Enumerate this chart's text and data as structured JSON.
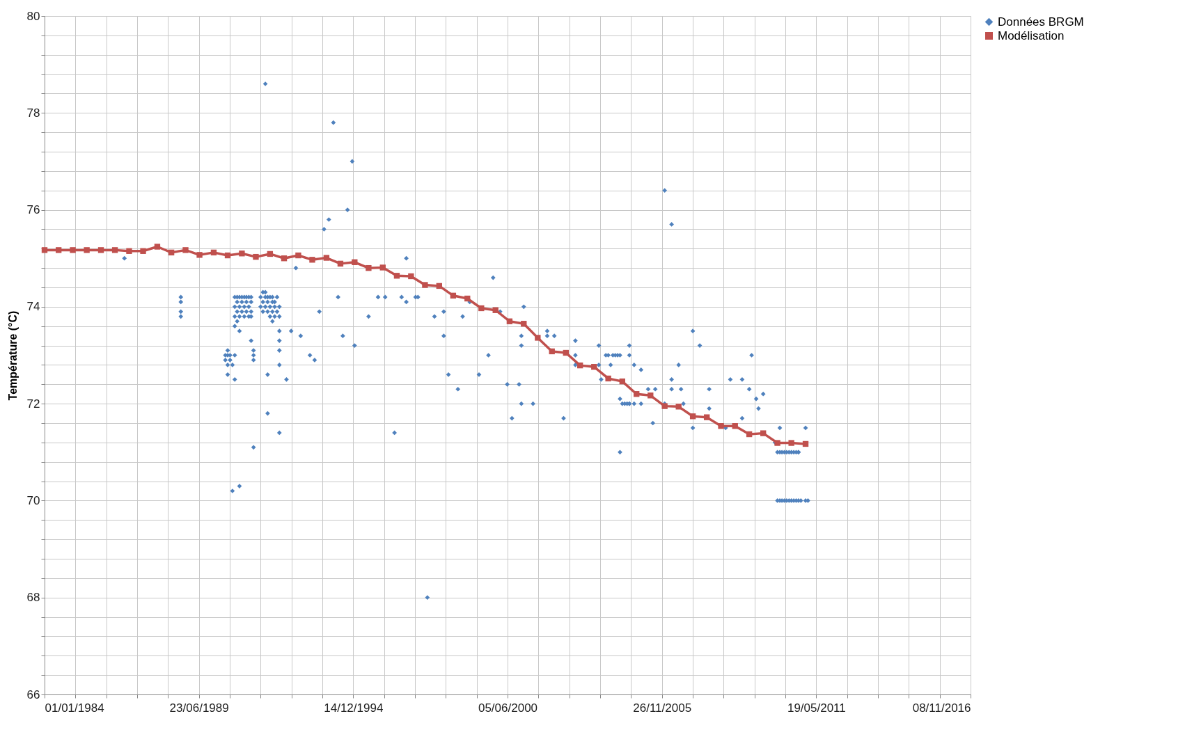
{
  "chart_data": {
    "type": "scatter",
    "ylabel": "Température (°C)",
    "xlim": [
      "1984-01-01",
      "2016-11-08"
    ],
    "ylim": [
      66,
      80
    ],
    "grid": true,
    "legend": "right",
    "xticks": [
      {
        "value": "1984-01-01",
        "label": "01/01/1984"
      },
      {
        "value": "1985-02-04",
        "label": null
      },
      {
        "value": "1986-03-10",
        "label": null
      },
      {
        "value": "1987-04-15",
        "label": null
      },
      {
        "value": "1988-05-19",
        "label": null
      },
      {
        "value": "1989-06-23",
        "label": "23/06/1989"
      },
      {
        "value": "1990-07-28",
        "label": null
      },
      {
        "value": "1991-09-01",
        "label": null
      },
      {
        "value": "1992-10-05",
        "label": null
      },
      {
        "value": "1993-11-09",
        "label": null
      },
      {
        "value": "1994-12-14",
        "label": "14/12/1994"
      },
      {
        "value": "1996-01-18",
        "label": null
      },
      {
        "value": "1997-02-21",
        "label": null
      },
      {
        "value": "1998-03-28",
        "label": null
      },
      {
        "value": "1999-05-02",
        "label": null
      },
      {
        "value": "2000-06-05",
        "label": "05/06/2000"
      },
      {
        "value": "2001-07-10",
        "label": null
      },
      {
        "value": "2002-08-14",
        "label": null
      },
      {
        "value": "2003-09-18",
        "label": null
      },
      {
        "value": "2004-10-22",
        "label": null
      },
      {
        "value": "2005-11-26",
        "label": "26/11/2005"
      },
      {
        "value": "2006-12-31",
        "label": null
      },
      {
        "value": "2008-02-04",
        "label": null
      },
      {
        "value": "2009-03-10",
        "label": null
      },
      {
        "value": "2010-04-14",
        "label": null
      },
      {
        "value": "2011-05-19",
        "label": "19/05/2011"
      },
      {
        "value": "2012-06-22",
        "label": null
      },
      {
        "value": "2013-07-27",
        "label": null
      },
      {
        "value": "2014-08-31",
        "label": null
      },
      {
        "value": "2015-10-05",
        "label": null
      },
      {
        "value": "2016-11-08",
        "label": "08/11/2016"
      }
    ],
    "yticks": [
      66,
      {
        "value": 66.4,
        "label": null
      },
      {
        "value": 66.8,
        "label": null
      },
      {
        "value": 67.2,
        "label": null
      },
      {
        "value": 67.6,
        "label": null
      },
      68,
      {
        "value": 68.4,
        "label": null
      },
      {
        "value": 68.8,
        "label": null
      },
      {
        "value": 69.2,
        "label": null
      },
      {
        "value": 69.6,
        "label": null
      },
      70,
      {
        "value": 70.4,
        "label": null
      },
      {
        "value": 70.8,
        "label": null
      },
      {
        "value": 71.2,
        "label": null
      },
      {
        "value": 71.6,
        "label": null
      },
      72,
      {
        "value": 72.4,
        "label": null
      },
      {
        "value": 72.8,
        "label": null
      },
      {
        "value": 73.2,
        "label": null
      },
      {
        "value": 73.6,
        "label": null
      },
      74,
      {
        "value": 74.4,
        "label": null
      },
      {
        "value": 74.8,
        "label": null
      },
      {
        "value": 75.2,
        "label": null
      },
      {
        "value": 75.6,
        "label": null
      },
      76,
      {
        "value": 76.4,
        "label": null
      },
      {
        "value": 76.8,
        "label": null
      },
      {
        "value": 77.2,
        "label": null
      },
      {
        "value": 77.6,
        "label": null
      },
      78,
      {
        "value": 78.4,
        "label": null
      },
      {
        "value": 78.8,
        "label": null
      },
      {
        "value": 79.2,
        "label": null
      },
      {
        "value": 79.6,
        "label": null
      },
      80
    ],
    "series": [
      {
        "name": "Données BRGM",
        "marker": "diamond",
        "color": "#4f81bd",
        "x": [
          "1986-11",
          "1988-11",
          "1988-11",
          "1988-11",
          "1988-11",
          "1990-06",
          "1990-06",
          "1990-07",
          "1990-07",
          "1990-07",
          "1990-07",
          "1990-08",
          "1990-08",
          "1990-09",
          "1990-09",
          "1990-10",
          "1990-10",
          "1990-10",
          "1990-10",
          "1990-10",
          "1990-10",
          "1990-11",
          "1990-11",
          "1990-11",
          "1990-11",
          "1990-12",
          "1990-12",
          "1990-12",
          "1990-12",
          "1990-12",
          "1991-01",
          "1991-01",
          "1991-01",
          "1991-02",
          "1991-02",
          "1991-02",
          "1991-03",
          "1991-03",
          "1991-03",
          "1991-04",
          "1991-04",
          "1991-04",
          "1991-05",
          "1991-05",
          "1991-05",
          "1991-05",
          "1991-05",
          "1991-06",
          "1991-06",
          "1991-06",
          "1991-06",
          "1991-09",
          "1991-09",
          "1991-10",
          "1991-10",
          "1991-10",
          "1991-11",
          "1991-11",
          "1991-11",
          "1991-11",
          "1991-12",
          "1991-12",
          "1991-12",
          "1991-12",
          "1991-12",
          "1992-01",
          "1992-01",
          "1992-01",
          "1992-02",
          "1992-02",
          "1992-02",
          "1992-02",
          "1992-03",
          "1992-03",
          "1992-03",
          "1992-04",
          "1992-04",
          "1992-05",
          "1992-05",
          "1992-05",
          "1992-05",
          "1992-05",
          "1992-05",
          "1992-05",
          "1992-08",
          "1992-10",
          "1992-12",
          "1993-02",
          "1993-06",
          "1993-08",
          "1993-10",
          "1993-12",
          "1994-02",
          "1994-04",
          "1994-06",
          "1994-08",
          "1994-10",
          "1994-12",
          "1995-01",
          "1995-07",
          "1995-11",
          "1996-02",
          "1996-06",
          "1996-09",
          "1996-11",
          "1996-11",
          "1997-03",
          "1997-04",
          "1997-08",
          "1997-11",
          "1998-03",
          "1998-03",
          "1998-05",
          "1998-09",
          "1998-11",
          "1999-02",
          "1999-06",
          "1999-10",
          "1999-12",
          "2000-03",
          "2000-06",
          "2000-08",
          "2000-11",
          "2000-12",
          "2000-12",
          "2000-12",
          "2001-01",
          "2001-05",
          "2001-11",
          "2001-11",
          "2002-02",
          "2002-06",
          "2002-11",
          "2002-11",
          "2002-11",
          "2003-09",
          "2003-09",
          "2003-10",
          "2003-12",
          "2004-01",
          "2004-02",
          "2004-03",
          "2004-04",
          "2004-05",
          "2004-06",
          "2004-06",
          "2004-06",
          "2004-07",
          "2004-08",
          "2004-09",
          "2004-10",
          "2004-10",
          "2004-10",
          "2004-10",
          "2004-12",
          "2004-12",
          "2005-03",
          "2005-03",
          "2005-06",
          "2005-08",
          "2005-09",
          "2006-01",
          "2006-01",
          "2006-04",
          "2006-04",
          "2006-04",
          "2006-07",
          "2006-08",
          "2006-09",
          "2007-01",
          "2007-01",
          "2007-04",
          "2007-08",
          "2007-08",
          "2008-03",
          "2008-05",
          "2008-10",
          "2008-10",
          "2009-01",
          "2009-02",
          "2009-04",
          "2009-05",
          "2009-07",
          "2009-12",
          "2010-01",
          "2010-02",
          "2010-02",
          "2010-03",
          "2010-04",
          "2010-05",
          "2010-06",
          "2010-07",
          "2010-08",
          "2010-09",
          "2010-10",
          "2010-10",
          "2010-01",
          "2010-02",
          "2010-03",
          "2010-04",
          "2010-05",
          "2010-06",
          "2010-07",
          "2010-08",
          "2010-09",
          "2010-10",
          "2010-11",
          "2011-01",
          "2011-02",
          "2011-01"
        ],
        "values": [
          75.0,
          74.2,
          74.1,
          73.9,
          73.8,
          73.0,
          72.9,
          73.1,
          73.0,
          72.8,
          72.6,
          73.0,
          72.9,
          72.8,
          70.2,
          72.5,
          73.0,
          74.2,
          74.0,
          73.8,
          73.6,
          74.2,
          74.1,
          73.9,
          73.7,
          70.3,
          73.5,
          74.2,
          74.0,
          73.8,
          74.2,
          74.1,
          73.9,
          74.2,
          74.0,
          73.8,
          74.2,
          74.1,
          73.9,
          74.2,
          74.0,
          73.8,
          74.2,
          74.1,
          73.9,
          73.8,
          73.3,
          73.1,
          73.0,
          72.9,
          71.1,
          74.2,
          74.0,
          74.3,
          74.1,
          73.9,
          78.6,
          74.3,
          74.2,
          74.0,
          74.2,
          74.1,
          73.9,
          72.6,
          71.8,
          74.2,
          74.0,
          73.8,
          74.2,
          74.1,
          73.9,
          73.7,
          74.1,
          74.0,
          73.8,
          74.2,
          73.9,
          74.0,
          73.8,
          71.4,
          72.8,
          73.5,
          73.3,
          73.1,
          72.5,
          73.5,
          74.8,
          73.4,
          73.0,
          72.9,
          73.9,
          75.6,
          75.8,
          77.8,
          74.2,
          73.4,
          76.0,
          77.0,
          73.2,
          73.8,
          74.2,
          74.2,
          71.4,
          74.2,
          74.1,
          75.0,
          74.2,
          74.2,
          68.0,
          73.8,
          73.9,
          73.4,
          72.6,
          72.3,
          73.8,
          74.1,
          72.6,
          73.0,
          74.6,
          73.9,
          72.4,
          71.7,
          72.4,
          73.2,
          73.4,
          72.0,
          74.0,
          72.0,
          73.5,
          73.4,
          73.4,
          71.7,
          72.8,
          73.3,
          73.0,
          73.2,
          72.8,
          72.5,
          73.0,
          73.0,
          72.8,
          73.0,
          73.0,
          73.0,
          73.0,
          71.0,
          72.1,
          72.0,
          72.0,
          72.0,
          72.0,
          72.0,
          73.2,
          73.0,
          72.8,
          72.0,
          72.7,
          72.0,
          72.3,
          71.6,
          72.3,
          72.0,
          76.4,
          75.7,
          72.3,
          72.5,
          72.8,
          72.3,
          72.0,
          71.5,
          73.5,
          73.2,
          72.3,
          71.9,
          71.5,
          72.5,
          71.7,
          72.5,
          72.3,
          73.0,
          72.1,
          71.9,
          72.2,
          71.2,
          71.0,
          71.0,
          71.5,
          71.0,
          71.0,
          71.0,
          71.0,
          71.0,
          71.0,
          71.0,
          71.0,
          71.0,
          70.0,
          70.0,
          70.0,
          70.0,
          70.0,
          70.0,
          70.0,
          70.0,
          70.0,
          70.0,
          70.0,
          70.0,
          70.0,
          71.5
        ]
      },
      {
        "name": "Modélisation",
        "type": "line",
        "marker": "square",
        "color": "#c0504d",
        "x": [
          "1984-01",
          "1984-07",
          "1985-01",
          "1985-07",
          "1986-01",
          "1986-07",
          "1987-01",
          "1987-07",
          "1988-01",
          "1988-07",
          "1989-01",
          "1989-07",
          "1990-01",
          "1990-07",
          "1991-01",
          "1991-07",
          "1992-01",
          "1992-07",
          "1993-01",
          "1993-07",
          "1994-01",
          "1994-07",
          "1995-01",
          "1995-07",
          "1996-01",
          "1996-07",
          "1997-01",
          "1997-07",
          "1998-01",
          "1998-07",
          "1999-01",
          "1999-07",
          "2000-01",
          "2000-07",
          "2001-01",
          "2001-07",
          "2002-01",
          "2002-07",
          "2003-01",
          "2003-07",
          "2004-01",
          "2004-07",
          "2005-01",
          "2005-07",
          "2006-01",
          "2006-07",
          "2007-01",
          "2007-07",
          "2008-01",
          "2008-07",
          "2009-01",
          "2009-07",
          "2010-01",
          "2010-07",
          "2011-01"
        ],
        "values": [
          75.17,
          75.17,
          75.17,
          75.17,
          75.17,
          75.17,
          75.15,
          75.15,
          75.24,
          75.12,
          75.17,
          75.07,
          75.12,
          75.06,
          75.1,
          75.03,
          75.09,
          75.0,
          75.06,
          74.97,
          75.01,
          74.89,
          74.92,
          74.8,
          74.81,
          74.64,
          74.63,
          74.45,
          74.43,
          74.23,
          74.17,
          73.97,
          73.93,
          73.7,
          73.65,
          73.36,
          73.08,
          73.05,
          72.79,
          72.76,
          72.52,
          72.46,
          72.2,
          72.17,
          71.95,
          71.94,
          71.74,
          71.72,
          71.54,
          71.54,
          71.37,
          71.39,
          71.19,
          71.19,
          71.17
        ]
      }
    ]
  }
}
